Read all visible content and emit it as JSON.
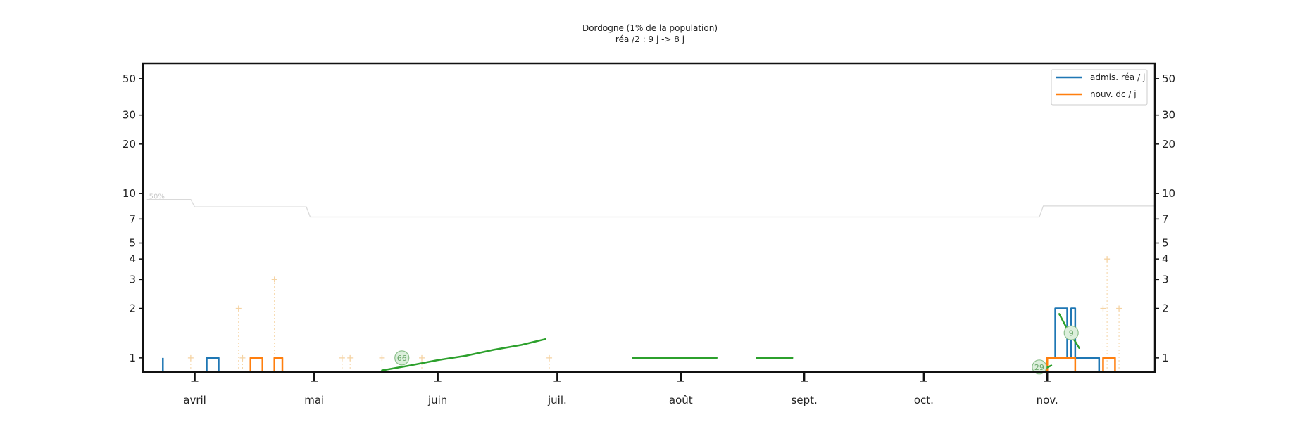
{
  "chart_data": {
    "type": "line",
    "title": "Dordogne (1% de la population)",
    "subtitle": "réa /2 : 9 j -> 8 j",
    "xlabel": "",
    "ylabel": "",
    "yscale": "log",
    "ylim": [
      0.82,
      62
    ],
    "y_ticks": [
      1,
      2,
      3,
      4,
      5,
      7,
      10,
      20,
      30,
      50
    ],
    "x_range": [
      "2020-03-19",
      "2020-11-28"
    ],
    "x_ticks": [
      {
        "date": "2020-04-01",
        "label": "avril"
      },
      {
        "date": "2020-05-01",
        "label": "mai"
      },
      {
        "date": "2020-06-01",
        "label": "juin"
      },
      {
        "date": "2020-07-01",
        "label": "juil."
      },
      {
        "date": "2020-08-01",
        "label": "août"
      },
      {
        "date": "2020-09-01",
        "label": "sept."
      },
      {
        "date": "2020-10-01",
        "label": "oct."
      },
      {
        "date": "2020-11-01",
        "label": "nov."
      }
    ],
    "grid": false,
    "legend_position": "top-right",
    "series": [
      {
        "name": "admis. réa / j",
        "color": "#1f77b4",
        "segments": [
          [
            [
              "2020-03-24",
              1
            ]
          ],
          [
            [
              "2020-04-04",
              1
            ],
            [
              "2020-04-06",
              1
            ],
            [
              "2020-04-07",
              1
            ]
          ],
          [
            [
              "2020-11-01",
              1
            ],
            [
              "2020-11-02",
              1
            ],
            [
              "2020-11-03",
              2
            ],
            [
              "2020-11-05",
              2
            ],
            [
              "2020-11-06",
              1
            ],
            [
              "2020-11-07",
              2
            ],
            [
              "2020-11-08",
              1
            ],
            [
              "2020-11-14",
              1
            ]
          ]
        ]
      },
      {
        "name": "nouv. dc / j",
        "color": "#ff7f0e",
        "segments": [
          [
            [
              "2020-04-15",
              1
            ],
            [
              "2020-04-17",
              1
            ],
            [
              "2020-04-18",
              1
            ]
          ],
          [
            [
              "2020-04-21",
              1
            ],
            [
              "2020-04-23",
              1
            ]
          ],
          [
            [
              "2020-11-01",
              1
            ],
            [
              "2020-11-03",
              1
            ],
            [
              "2020-11-04",
              1
            ],
            [
              "2020-11-08",
              1
            ]
          ],
          [
            [
              "2020-11-15",
              1
            ],
            [
              "2020-11-18",
              1
            ]
          ]
        ]
      }
    ],
    "faint_series": {
      "color": "#f5d3a3",
      "points": [
        [
          "2020-03-31",
          1
        ],
        [
          "2020-04-12",
          2
        ],
        [
          "2020-04-13",
          1
        ],
        [
          "2020-04-21",
          3
        ],
        [
          "2020-05-08",
          1
        ],
        [
          "2020-05-10",
          1
        ],
        [
          "2020-05-18",
          1
        ],
        [
          "2020-05-28",
          1
        ],
        [
          "2020-06-29",
          1
        ],
        [
          "2020-11-15",
          2
        ],
        [
          "2020-11-16",
          4
        ],
        [
          "2020-11-19",
          2
        ]
      ]
    },
    "trend_lines": {
      "color": "#2ca02c",
      "segments": [
        [
          [
            "2020-05-18",
            0.84
          ],
          [
            "2020-05-25",
            0.9
          ],
          [
            "2020-06-01",
            0.97
          ],
          [
            "2020-06-08",
            1.03
          ],
          [
            "2020-06-15",
            1.12
          ],
          [
            "2020-06-22",
            1.2
          ],
          [
            "2020-06-28",
            1.3
          ]
        ],
        [
          [
            "2020-07-20",
            1
          ],
          [
            "2020-07-30",
            1
          ],
          [
            "2020-08-06",
            1
          ],
          [
            "2020-08-10",
            1
          ]
        ],
        [
          [
            "2020-08-20",
            1
          ],
          [
            "2020-08-25",
            1
          ],
          [
            "2020-08-29",
            1
          ]
        ],
        [
          [
            "2020-10-30",
            0.83
          ],
          [
            "2020-11-02",
            0.9
          ]
        ],
        [
          [
            "2020-11-04",
            1.85
          ],
          [
            "2020-11-06",
            1.5
          ],
          [
            "2020-11-09",
            1.15
          ]
        ]
      ]
    },
    "ref_line": {
      "label": "50%",
      "color": "#d9d9d9",
      "points": [
        [
          "2020-03-20",
          9.2
        ],
        [
          "2020-03-31",
          9.2
        ],
        [
          "2020-04-01",
          8.3
        ],
        [
          "2020-04-15",
          8.3
        ],
        [
          "2020-04-29",
          8.3
        ],
        [
          "2020-04-30",
          7.2
        ],
        [
          "2020-06-01",
          7.2
        ],
        [
          "2020-07-15",
          7.2
        ],
        [
          "2020-09-01",
          7.2
        ],
        [
          "2020-10-30",
          7.2
        ],
        [
          "2020-10-31",
          8.4
        ],
        [
          "2020-11-28",
          8.4
        ]
      ]
    },
    "annotations": [
      {
        "text": "66",
        "date": "2020-05-23",
        "y": 1
      },
      {
        "text": "9",
        "date": "2020-11-07",
        "y": 1.42
      },
      {
        "text": "29",
        "date": "2020-10-30",
        "y": 0.88
      }
    ]
  }
}
